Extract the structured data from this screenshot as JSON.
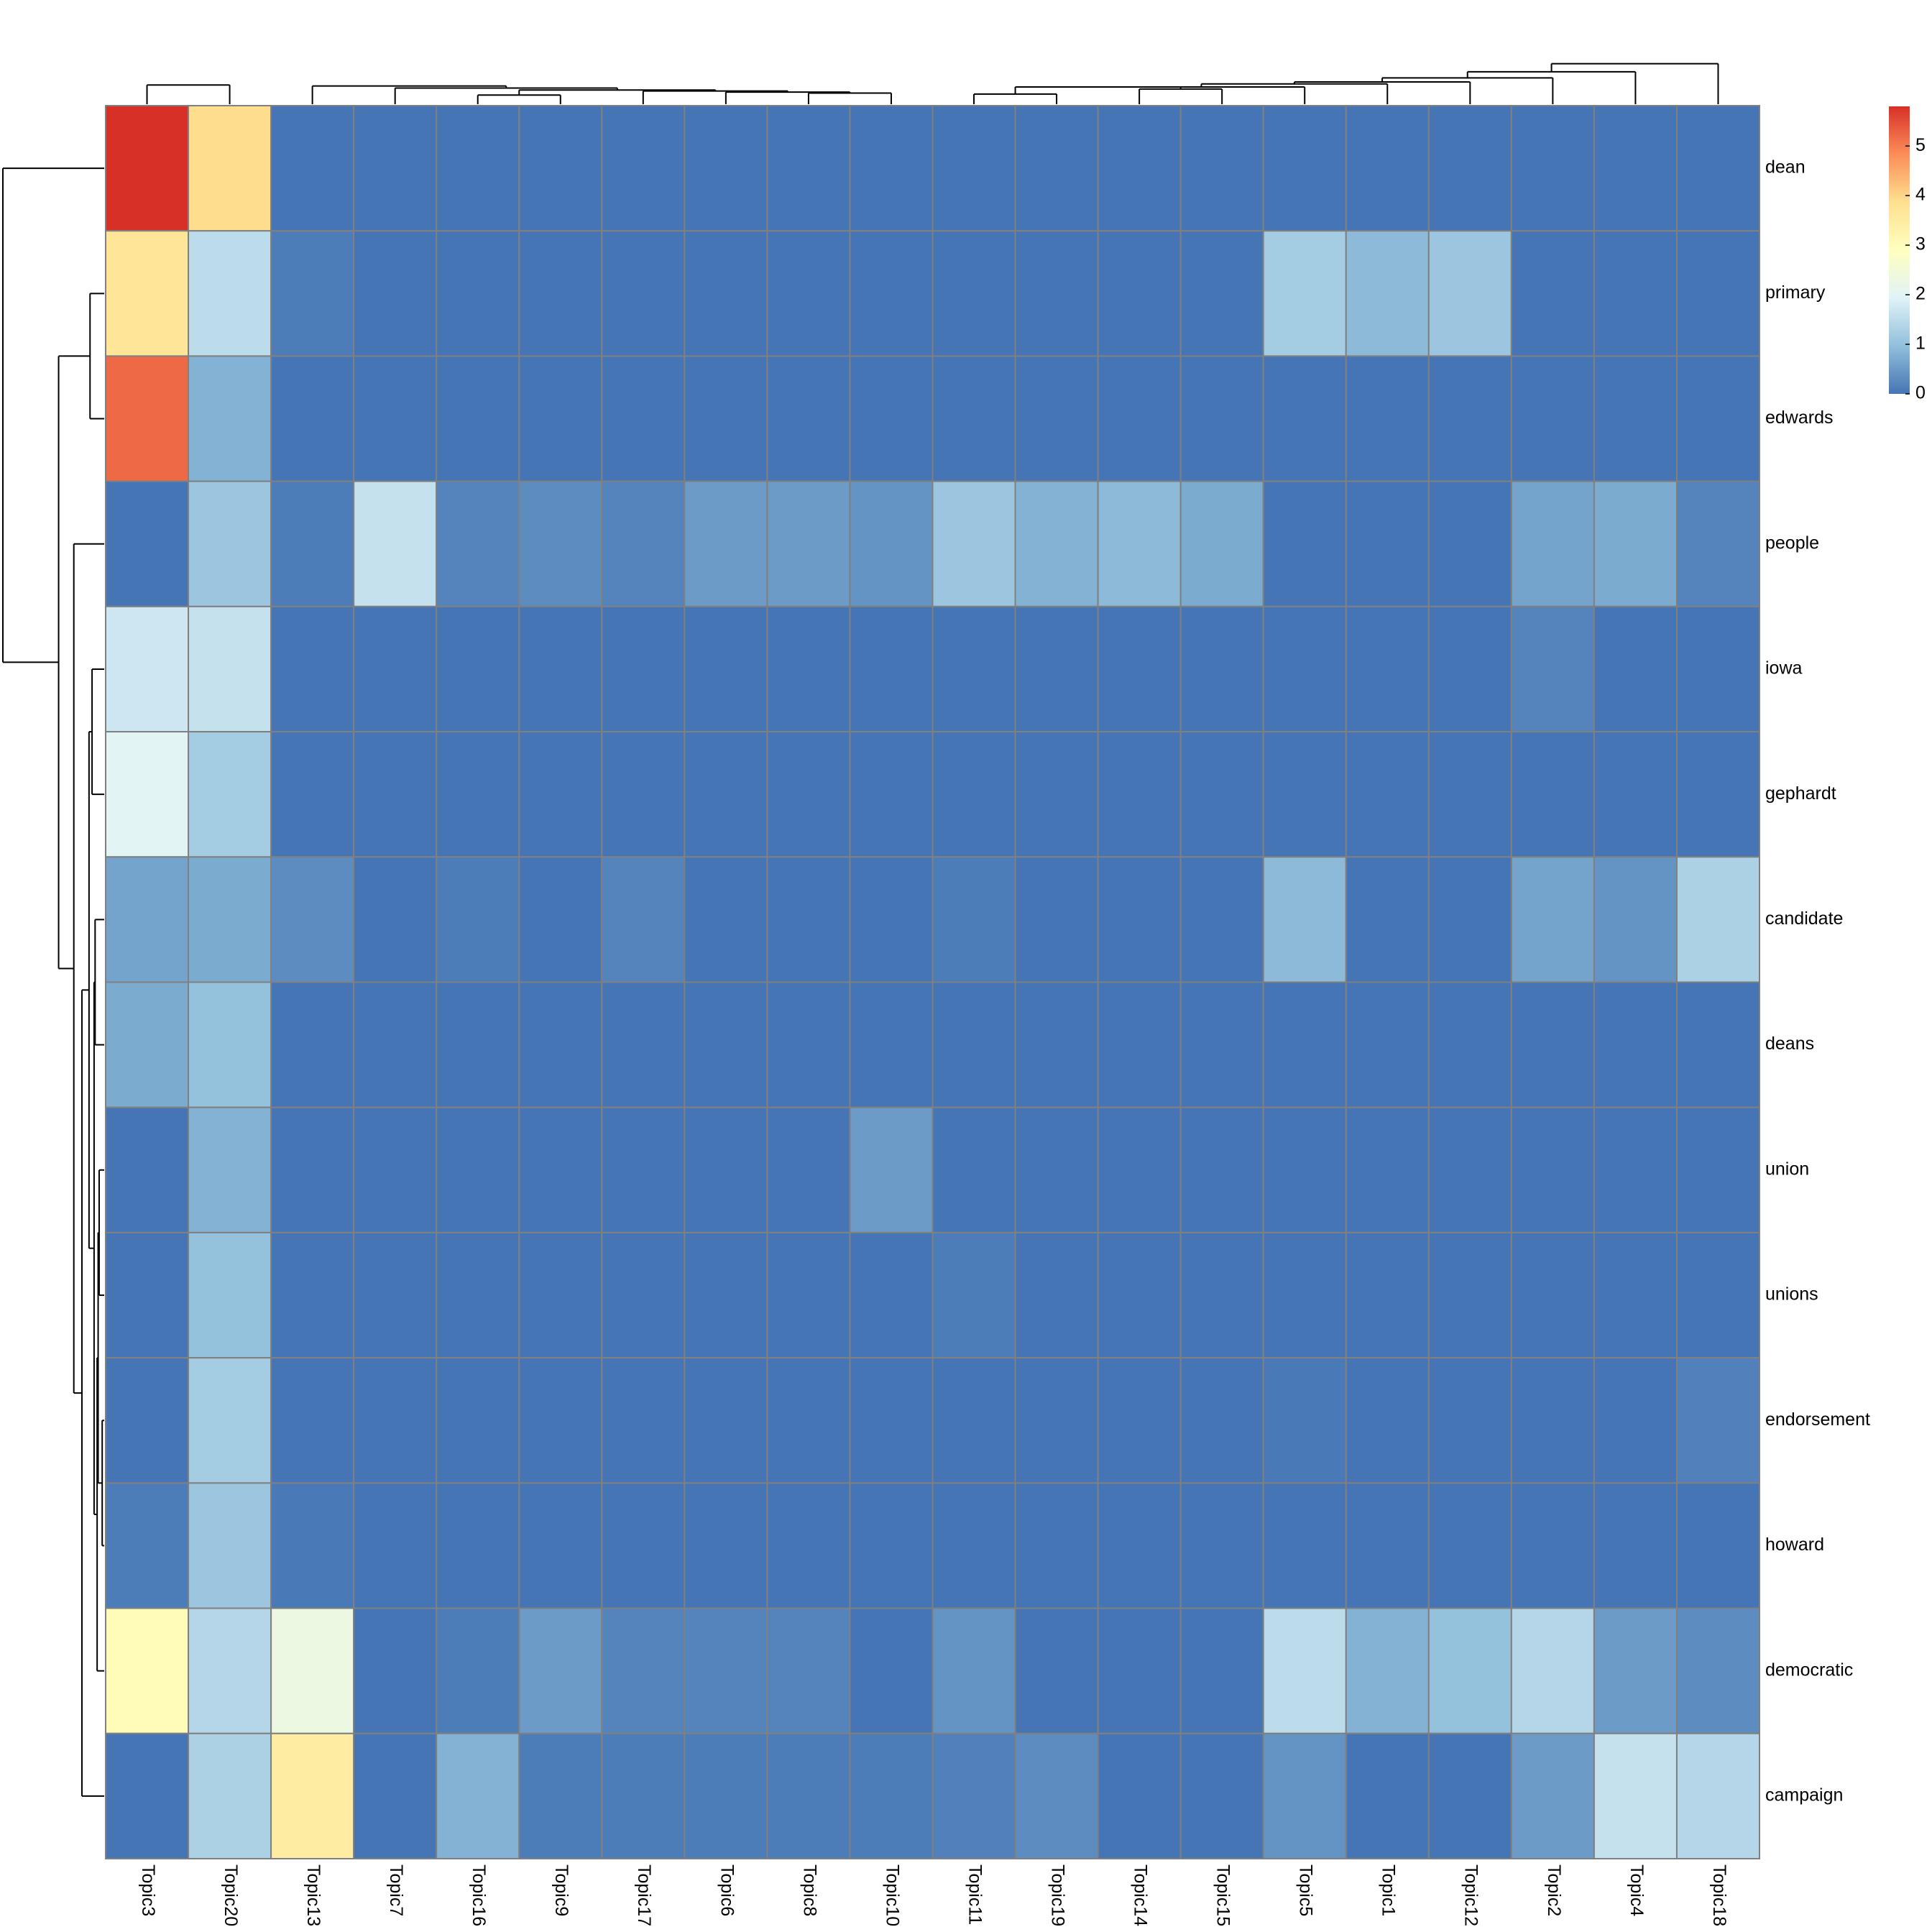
{
  "chart_data": {
    "type": "heatmap",
    "title": "",
    "xlabel": "",
    "ylabel": "",
    "columns": [
      "Topic3",
      "Topic20",
      "Topic13",
      "Topic7",
      "Topic16",
      "Topic9",
      "Topic17",
      "Topic6",
      "Topic8",
      "Topic10",
      "Topic11",
      "Topic19",
      "Topic14",
      "Topic15",
      "Topic5",
      "Topic1",
      "Topic12",
      "Topic2",
      "Topic4",
      "Topic18"
    ],
    "rows": [
      "dean",
      "primary",
      "edwards",
      "people",
      "iowa",
      "gephardt",
      "candidate",
      "deans",
      "union",
      "unions",
      "endorsement",
      "howard",
      "democratic",
      "campaign"
    ],
    "values": [
      [
        5.8,
        3.9,
        0.0,
        0.0,
        0.0,
        0.0,
        0.0,
        0.0,
        0.0,
        0.0,
        0.0,
        0.0,
        0.0,
        0.0,
        0.0,
        0.0,
        0.0,
        0.0,
        0.0,
        0.0
      ],
      [
        3.7,
        1.5,
        0.1,
        0.0,
        0.0,
        0.0,
        0.0,
        0.0,
        0.0,
        0.0,
        0.0,
        0.0,
        0.0,
        0.0,
        1.2,
        0.9,
        1.1,
        0.0,
        0.0,
        0.0
      ],
      [
        5.2,
        0.8,
        0.0,
        0.0,
        0.0,
        0.0,
        0.0,
        0.0,
        0.0,
        0.0,
        0.0,
        0.0,
        0.0,
        0.0,
        0.0,
        0.0,
        0.0,
        0.0,
        0.0,
        0.0
      ],
      [
        0.0,
        1.1,
        0.1,
        1.6,
        0.2,
        0.3,
        0.2,
        0.5,
        0.5,
        0.4,
        1.1,
        0.8,
        0.9,
        0.7,
        0.0,
        0.0,
        0.0,
        0.6,
        0.7,
        0.2
      ],
      [
        1.7,
        1.6,
        0.0,
        0.0,
        0.0,
        0.0,
        0.0,
        0.0,
        0.0,
        0.0,
        0.0,
        0.0,
        0.0,
        0.0,
        0.0,
        0.0,
        0.0,
        0.2,
        0.0,
        0.0
      ],
      [
        2.0,
        1.2,
        0.0,
        0.0,
        0.0,
        0.0,
        0.0,
        0.0,
        0.0,
        0.0,
        0.0,
        0.0,
        0.0,
        0.0,
        0.0,
        0.0,
        0.0,
        0.0,
        0.0,
        0.0
      ],
      [
        0.6,
        0.7,
        0.3,
        0.0,
        0.1,
        0.0,
        0.2,
        0.0,
        0.0,
        0.0,
        0.1,
        0.0,
        0.0,
        0.0,
        0.9,
        0.0,
        0.0,
        0.6,
        0.4,
        1.3
      ],
      [
        0.7,
        1.0,
        0.0,
        0.0,
        0.0,
        0.0,
        0.0,
        0.0,
        0.0,
        0.0,
        0.0,
        0.0,
        0.0,
        0.0,
        0.0,
        0.0,
        0.0,
        0.0,
        0.0,
        0.0
      ],
      [
        0.0,
        0.8,
        0.0,
        0.0,
        0.0,
        0.0,
        0.0,
        0.0,
        0.0,
        0.5,
        0.0,
        0.0,
        0.0,
        0.0,
        0.0,
        0.0,
        0.0,
        0.0,
        0.0,
        0.0
      ],
      [
        0.0,
        1.0,
        0.0,
        0.0,
        0.0,
        0.0,
        0.0,
        0.0,
        0.0,
        0.0,
        0.1,
        0.0,
        0.0,
        0.0,
        0.0,
        0.0,
        0.0,
        0.0,
        0.0,
        0.0
      ],
      [
        0.0,
        1.2,
        0.0,
        0.0,
        0.0,
        0.0,
        0.0,
        0.0,
        0.0,
        0.0,
        0.0,
        0.0,
        0.0,
        0.0,
        0.05,
        0.0,
        0.0,
        0.0,
        0.0,
        0.15
      ],
      [
        0.1,
        1.1,
        0.05,
        0.0,
        0.0,
        0.0,
        0.0,
        0.0,
        0.0,
        0.0,
        0.0,
        0.0,
        0.0,
        0.0,
        0.0,
        0.0,
        0.0,
        0.0,
        0.0,
        0.0
      ],
      [
        3.0,
        1.4,
        2.3,
        0.0,
        0.1,
        0.5,
        0.2,
        0.2,
        0.2,
        0.0,
        0.4,
        0.0,
        0.0,
        0.0,
        1.5,
        0.8,
        1.0,
        1.4,
        0.5,
        0.3
      ],
      [
        0.0,
        1.3,
        3.5,
        0.0,
        0.8,
        0.1,
        0.1,
        0.1,
        0.1,
        0.1,
        0.15,
        0.3,
        0.0,
        0.0,
        0.4,
        0.0,
        0.0,
        0.5,
        1.6,
        1.4
      ]
    ],
    "scale": {
      "min": 0,
      "max": 5.8,
      "ticks": [
        0,
        1,
        2,
        3,
        4,
        5
      ],
      "colors": [
        "#4575b4",
        "#91bfdb",
        "#e0f3f8",
        "#ffffbf",
        "#fee090",
        "#fc8d59",
        "#d73027"
      ]
    },
    "legend_position": "top-right",
    "grid": true,
    "column_dendrogram": {
      "order": [
        "Topic3",
        "Topic20",
        "Topic13",
        "Topic7",
        "Topic16",
        "Topic9",
        "Topic17",
        "Topic6",
        "Topic8",
        "Topic10",
        "Topic11",
        "Topic19",
        "Topic14",
        "Topic15",
        "Topic5",
        "Topic1",
        "Topic12",
        "Topic2",
        "Topic4",
        "Topic18"
      ],
      "merges": [
        [
          0.0,
          19.0
        ],
        [
          4.0,
          9.0
        ],
        [
          1.2,
          20.0
        ],
        [
          5.0,
          14.0
        ],
        [
          6.0,
          13.0
        ],
        [
          3.0,
          16.0
        ],
        [
          2.0,
          18.0
        ],
        [
          7.0,
          12.0
        ],
        [
          8.0,
          11.0
        ],
        [
          10.0,
          10.0
        ],
        [
          11.0,
          17.0
        ],
        [
          12.0,
          15.0
        ],
        [
          13.0,
          17.0
        ],
        [
          14.0,
          20.0
        ],
        [
          15.0,
          22.0
        ],
        [
          16.0,
          26.0
        ],
        [
          17.0,
          32.0
        ],
        [
          18.0,
          40.0
        ],
        [
          19.0,
          100.0
        ]
      ]
    },
    "row_dendrogram": {
      "order": [
        "dean",
        "primary",
        "edwards",
        "people",
        "iowa",
        "gephardt",
        "candidate",
        "deans",
        "union",
        "unions",
        "endorsement",
        "howard",
        "democratic",
        "campaign"
      ],
      "merges": [
        [
          1.0,
          14.0
        ],
        [
          9.0,
          6.0
        ],
        [
          10.0,
          2.0
        ],
        [
          8.0,
          5.0
        ],
        [
          11.0,
          7.0
        ],
        [
          6.0,
          9.0
        ],
        [
          7.0,
          10.0
        ],
        [
          4.0,
          12.0
        ],
        [
          5.0,
          15.0
        ],
        [
          12.0,
          22.0
        ],
        [
          3.0,
          30.0
        ],
        [
          2.0,
          45.0
        ],
        [
          0.0,
          100.0
        ]
      ]
    }
  }
}
